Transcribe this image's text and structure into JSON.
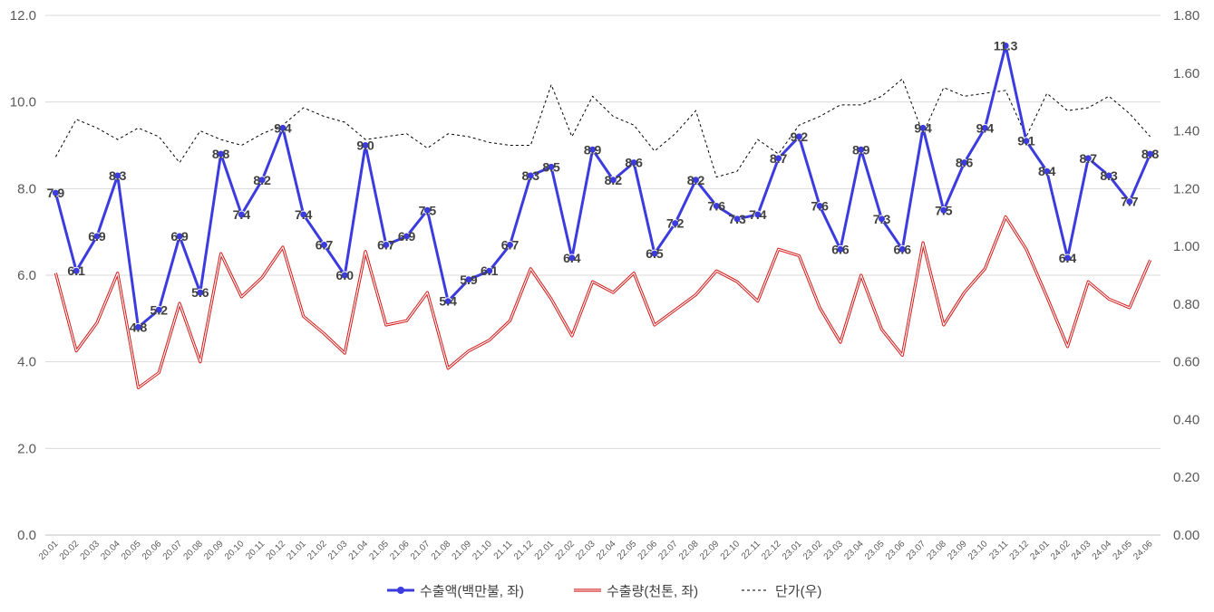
{
  "chart_data": {
    "type": "line",
    "categories": [
      "20.01",
      "20.02",
      "20.03",
      "20.04",
      "20.05",
      "20.06",
      "20.07",
      "20.08",
      "20.09",
      "20.10",
      "20.11",
      "20.12",
      "21.01",
      "21.02",
      "21.03",
      "21.04",
      "21.05",
      "21.06",
      "21.07",
      "21.08",
      "21.09",
      "21.10",
      "21.11",
      "21.12",
      "22.01",
      "22.02",
      "22.03",
      "22.04",
      "22.05",
      "22.06",
      "22.07",
      "22.08",
      "22.09",
      "22.10",
      "22.11",
      "22.12",
      "23.01",
      "23.02",
      "23.03",
      "23.04",
      "23.05",
      "23.06",
      "23.07",
      "23.08",
      "23.09",
      "23.10",
      "23.11",
      "23.12",
      "24.01",
      "24.02",
      "24.03",
      "24.04",
      "24.05",
      "24.06"
    ],
    "left_axis": {
      "ylim": [
        0,
        12
      ],
      "ticks": [
        "0.0",
        "2.0",
        "4.0",
        "6.0",
        "8.0",
        "10.0",
        "12.0"
      ]
    },
    "right_axis": {
      "ylim": [
        0,
        1.8
      ],
      "ticks": [
        "0.00",
        "0.20",
        "0.40",
        "0.60",
        "0.80",
        "1.00",
        "1.20",
        "1.40",
        "1.60",
        "1.80"
      ]
    },
    "grid": "horizontal",
    "legend_position": "bottom",
    "series": [
      {
        "name": "수출액(백만불, 좌)",
        "axis": "left",
        "color": "#3b3be0",
        "style": "line-markers-labels",
        "values": [
          7.9,
          6.1,
          6.9,
          8.3,
          4.8,
          5.2,
          6.9,
          5.6,
          8.8,
          7.4,
          8.2,
          9.4,
          7.4,
          6.7,
          6.0,
          9.0,
          6.7,
          6.9,
          7.5,
          5.4,
          5.9,
          6.1,
          6.7,
          8.3,
          8.5,
          6.4,
          8.9,
          8.2,
          8.6,
          6.5,
          7.2,
          8.2,
          7.6,
          7.3,
          7.4,
          8.7,
          9.2,
          7.6,
          6.6,
          8.9,
          7.3,
          6.6,
          9.4,
          7.5,
          8.6,
          9.4,
          11.3,
          9.1,
          8.4,
          6.4,
          8.7,
          8.3,
          7.7,
          8.8
        ],
        "labels": [
          "7.9",
          "6.1",
          "6.9",
          "8.3",
          "4.8",
          "5.2",
          "6.9",
          "5.6",
          "8.8",
          "7.4",
          "8.2",
          "9.4",
          "7.4",
          "6.7",
          "6.0",
          "9.0",
          "6.7",
          "6.9",
          "7.5",
          "5.4",
          "5.9",
          "6.1",
          "6.7",
          "8.3",
          "8.5",
          "6.4",
          "8.9",
          "8.2",
          "8.6",
          "6.5",
          "7.2",
          "8.2",
          "7.6",
          "7.3",
          "7.4",
          "8.7",
          "9.2",
          "7.6",
          "6.6",
          "8.9",
          "7.3",
          "6.6",
          "9.4",
          "7.5",
          "8.6",
          "9.4",
          "11.3",
          "9.1",
          "8.4",
          "6.4",
          "8.7",
          "8.3",
          "7.7",
          "8.8"
        ]
      },
      {
        "name": "수출량(천톤, 좌)",
        "axis": "left",
        "color": "#d62020",
        "style": "double-line",
        "values": [
          6.05,
          4.25,
          4.9,
          6.05,
          3.4,
          3.75,
          5.35,
          4.0,
          6.5,
          5.5,
          5.95,
          6.65,
          5.05,
          4.65,
          4.2,
          6.55,
          4.85,
          4.95,
          5.6,
          3.85,
          4.25,
          4.5,
          4.95,
          6.15,
          5.45,
          4.6,
          5.85,
          5.6,
          6.05,
          4.85,
          5.2,
          5.55,
          6.1,
          5.85,
          5.4,
          6.6,
          6.45,
          5.25,
          4.45,
          6.0,
          4.75,
          4.15,
          6.75,
          4.85,
          5.6,
          6.15,
          7.35,
          6.6,
          5.5,
          4.35,
          5.85,
          5.45,
          5.25,
          6.35
        ]
      },
      {
        "name": "단가(우)",
        "axis": "right",
        "color": "#000000",
        "style": "dashed",
        "values": [
          1.31,
          1.44,
          1.41,
          1.37,
          1.41,
          1.38,
          1.29,
          1.4,
          1.37,
          1.35,
          1.39,
          1.42,
          1.48,
          1.45,
          1.43,
          1.37,
          1.38,
          1.39,
          1.34,
          1.39,
          1.38,
          1.36,
          1.35,
          1.35,
          1.56,
          1.38,
          1.52,
          1.45,
          1.42,
          1.33,
          1.39,
          1.47,
          1.24,
          1.26,
          1.37,
          1.32,
          1.42,
          1.45,
          1.49,
          1.49,
          1.52,
          1.58,
          1.39,
          1.55,
          1.52,
          1.53,
          1.54,
          1.38,
          1.53,
          1.47,
          1.48,
          1.52,
          1.46,
          1.38
        ]
      }
    ]
  }
}
